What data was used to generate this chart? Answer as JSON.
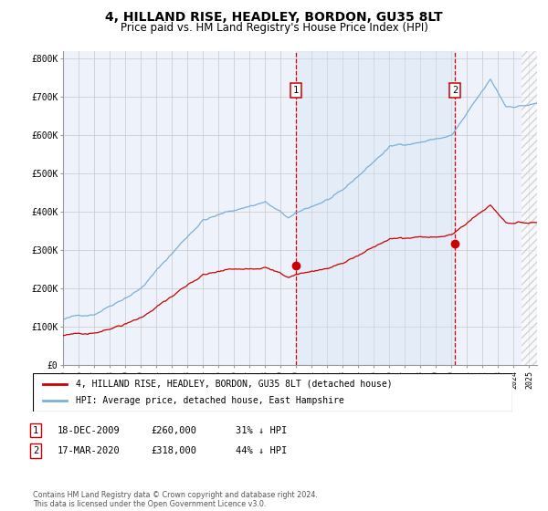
{
  "title": "4, HILLAND RISE, HEADLEY, BORDON, GU35 8LT",
  "subtitle": "Price paid vs. HM Land Registry's House Price Index (HPI)",
  "title_fontsize": 10,
  "subtitle_fontsize": 8.5,
  "sale1_price": 260000,
  "sale1_label": "1",
  "sale1_year_float": 2009.96,
  "sale2_price": 318000,
  "sale2_label": "2",
  "sale2_year_float": 2020.21,
  "hpi_color": "#7ab0d8",
  "price_color": "#cc0000",
  "bg_color": "#ffffff",
  "plot_bg_color": "#eef2fa",
  "grid_color": "#c8c8c8",
  "highlight_color": "#d4e4f4",
  "legend1_text": "4, HILLAND RISE, HEADLEY, BORDON, GU35 8LT (detached house)",
  "legend2_text": "HPI: Average price, detached house, East Hampshire",
  "table_row1": [
    "1",
    "18-DEC-2009",
    "£260,000",
    "31% ↓ HPI"
  ],
  "table_row2": [
    "2",
    "17-MAR-2020",
    "£318,000",
    "44% ↓ HPI"
  ],
  "footnote": "Contains HM Land Registry data © Crown copyright and database right 2024.\nThis data is licensed under the Open Government Licence v3.0.",
  "xmin": 1995.0,
  "xmax": 2025.5,
  "ymin": 0,
  "ymax": 820000
}
